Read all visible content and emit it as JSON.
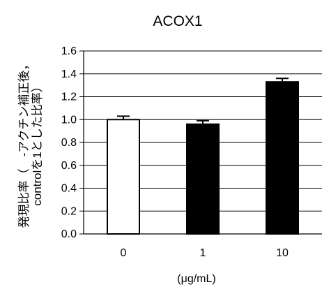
{
  "chart_data": {
    "type": "bar",
    "title": "ACOX1",
    "categories": [
      "0",
      "1",
      "10"
    ],
    "values": [
      1.0,
      0.96,
      1.33
    ],
    "errors": [
      0.03,
      0.03,
      0.03
    ],
    "bar_colors": [
      "#ffffff",
      "#000000",
      "#000000"
    ],
    "xlabel": "(μg/mL)",
    "ylabel_line1": "発現比率（　-アクチン補正後，",
    "ylabel_line2": "controlを1とした比率）",
    "ylim": [
      0,
      1.6
    ],
    "yticks": [
      "0.0",
      "0.2",
      "0.4",
      "0.6",
      "0.8",
      "1.0",
      "1.2",
      "1.4",
      "1.6"
    ],
    "grid": true
  }
}
